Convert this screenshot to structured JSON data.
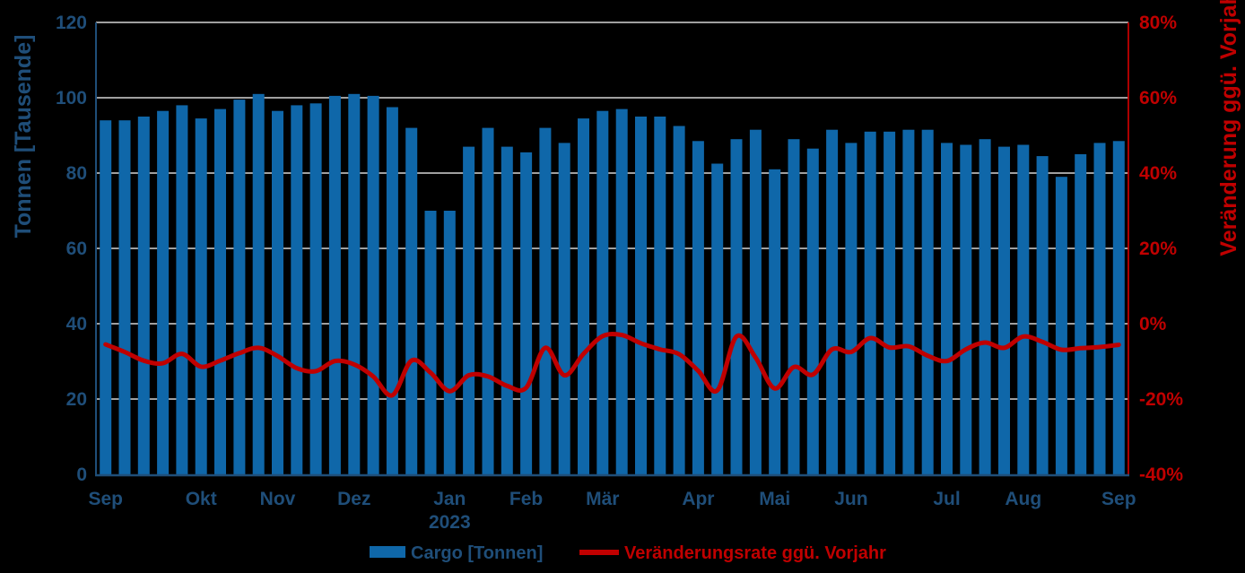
{
  "chart_data": {
    "type": "bar+line",
    "title": "",
    "background": "#000000",
    "gridline_color": "#d6d6d6",
    "x": {
      "unit": "week",
      "month_labels": [
        {
          "i": 0,
          "label": "Sep"
        },
        {
          "i": 5,
          "label": "Okt"
        },
        {
          "i": 9,
          "label": "Nov"
        },
        {
          "i": 13,
          "label": "Dez"
        },
        {
          "i": 18,
          "label": "Jan"
        },
        {
          "i": 22,
          "label": "Feb"
        },
        {
          "i": 26,
          "label": "Mär"
        },
        {
          "i": 31,
          "label": "Apr"
        },
        {
          "i": 35,
          "label": "Mai"
        },
        {
          "i": 39,
          "label": "Jun"
        },
        {
          "i": 44,
          "label": "Jul"
        },
        {
          "i": 48,
          "label": "Aug"
        },
        {
          "i": 53,
          "label": "Sep"
        }
      ],
      "year_label": {
        "i": 18,
        "text": "2023"
      }
    },
    "bars": {
      "name": "Cargo [Tonnen]",
      "color": "#0f67a9",
      "values": [
        94,
        94,
        95,
        96.5,
        98,
        94.5,
        97,
        99.5,
        101,
        96.5,
        98,
        98.5,
        100.5,
        101,
        100.5,
        97.5,
        92,
        70,
        70,
        87,
        92,
        87,
        85.5,
        92,
        88,
        94.5,
        96.5,
        97,
        95,
        95,
        92.5,
        88.5,
        82.5,
        89,
        91.5,
        81,
        89,
        86.5,
        91.5,
        88,
        91,
        91,
        91.5,
        91.5,
        88,
        87.5,
        89,
        87,
        87.5,
        84.5,
        79,
        85,
        88,
        88.5
      ]
    },
    "line": {
      "name": "Veränderungsrate ggü. Vorjahr",
      "color": "#c00000",
      "values": [
        -5.5,
        -7.5,
        -9.8,
        -10.5,
        -8,
        -11.4,
        -9.8,
        -7.8,
        -6.4,
        -8.6,
        -11.8,
        -12.6,
        -9.9,
        -10.8,
        -14,
        -19,
        -9.8,
        -13,
        -17.9,
        -13.7,
        -14,
        -16.5,
        -17,
        -6.4,
        -13.7,
        -8,
        -3.3,
        -3,
        -5.2,
        -6.8,
        -8.1,
        -12.5,
        -17.7,
        -3.4,
        -9,
        -17.2,
        -11.5,
        -13.5,
        -6.8,
        -7.5,
        -3.8,
        -6.3,
        -6,
        -8.5,
        -9.9,
        -6.8,
        -5,
        -6.4,
        -3.4,
        -4.8,
        -6.9,
        -6.5,
        -6.2,
        -5.6
      ]
    },
    "left_axis": {
      "title": "Tonnen [Tausende]",
      "color": "#1f4e79",
      "min": 0,
      "max": 120,
      "step": 20,
      "tick_labels": [
        "0",
        "20",
        "40",
        "60",
        "80",
        "100",
        "120"
      ]
    },
    "right_axis": {
      "title": "Veränderung ggü. Vorjahr",
      "color": "#c00000",
      "min": -40,
      "max": 80,
      "step": 20,
      "format": "percent",
      "tick_labels": [
        "-40%",
        "-20%",
        "0%",
        "20%",
        "40%",
        "60%",
        "80%"
      ]
    },
    "legend": [
      {
        "label": "Cargo [Tonnen]",
        "swatch": "bar",
        "color": "#0f67a9"
      },
      {
        "label": "Veränderungsrate ggü. Vorjahr",
        "swatch": "line",
        "color": "#c00000"
      }
    ]
  }
}
